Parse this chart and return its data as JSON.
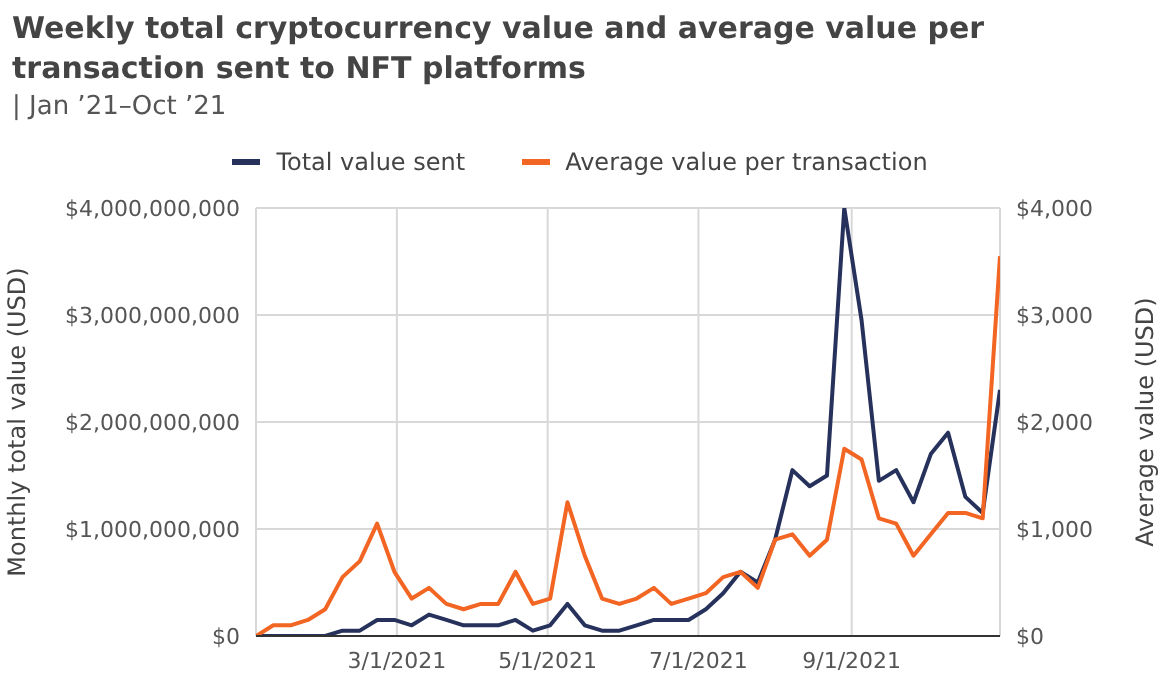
{
  "chart_data": {
    "type": "line",
    "title": "Weekly total cryptocurrency value and average value per transaction sent to NFT platforms",
    "subtitle": "| Jan ’21–Oct ’21",
    "ylabel": "Monthly total value (USD)",
    "y2label": "Average value (USD)",
    "x": [
      "2021-01-03",
      "2021-01-10",
      "2021-01-17",
      "2021-01-24",
      "2021-01-31",
      "2021-02-07",
      "2021-02-14",
      "2021-02-21",
      "2021-02-28",
      "2021-03-07",
      "2021-03-14",
      "2021-03-21",
      "2021-03-28",
      "2021-04-04",
      "2021-04-11",
      "2021-04-18",
      "2021-04-25",
      "2021-05-02",
      "2021-05-09",
      "2021-05-16",
      "2021-05-23",
      "2021-05-30",
      "2021-06-06",
      "2021-06-13",
      "2021-06-20",
      "2021-06-27",
      "2021-07-04",
      "2021-07-11",
      "2021-07-18",
      "2021-07-25",
      "2021-08-01",
      "2021-08-08",
      "2021-08-15",
      "2021-08-22",
      "2021-08-29",
      "2021-09-05",
      "2021-09-12",
      "2021-09-19",
      "2021-09-26",
      "2021-10-03",
      "2021-10-10",
      "2021-10-17",
      "2021-10-24",
      "2021-10-31"
    ],
    "series": [
      {
        "name": "Total value sent",
        "color": "#26325c",
        "values": [
          0,
          0,
          0,
          0,
          0,
          50000000,
          50000000,
          150000000,
          150000000,
          100000000,
          200000000,
          150000000,
          100000000,
          100000000,
          100000000,
          150000000,
          50000000,
          100000000,
          300000000,
          100000000,
          50000000,
          50000000,
          100000000,
          150000000,
          150000000,
          150000000,
          250000000,
          400000000,
          600000000,
          500000000,
          900000000,
          1550000000,
          1400000000,
          1500000000,
          4000000000,
          2950000000,
          1450000000,
          1550000000,
          1250000000,
          1700000000,
          1900000000,
          1300000000,
          1150000000,
          2300000000
        ]
      },
      {
        "name": "Average value per transaction",
        "color": "#f26522",
        "axis": "y2",
        "values": [
          0,
          100,
          100,
          150,
          250,
          550,
          700,
          1050,
          600,
          350,
          450,
          300,
          250,
          300,
          300,
          600,
          300,
          350,
          1250,
          750,
          350,
          300,
          350,
          450,
          300,
          350,
          400,
          550,
          600,
          450,
          900,
          950,
          750,
          900,
          1750,
          1650,
          1100,
          1050,
          750,
          950,
          1150,
          1150,
          1100,
          3550
        ]
      }
    ],
    "xlim": [
      "2021-01-03",
      "2021-10-31"
    ],
    "xticks": [
      {
        "value": "2021-03-01",
        "label": "3/1/2021"
      },
      {
        "value": "2021-05-01",
        "label": "5/1/2021"
      },
      {
        "value": "2021-07-01",
        "label": "7/1/2021"
      },
      {
        "value": "2021-09-01",
        "label": "9/1/2021"
      }
    ],
    "ylim": [
      0,
      4000000000
    ],
    "yticks": [
      {
        "value": 0,
        "label": "$0"
      },
      {
        "value": 1000000000,
        "label": "$1,000,000,000"
      },
      {
        "value": 2000000000,
        "label": "$2,000,000,000"
      },
      {
        "value": 3000000000,
        "label": "$3,000,000,000"
      },
      {
        "value": 4000000000,
        "label": "$4,000,000,000"
      }
    ],
    "y2lim": [
      0,
      4000
    ],
    "y2ticks": [
      {
        "value": 0,
        "label": "$0"
      },
      {
        "value": 1000,
        "label": "$1,000"
      },
      {
        "value": 2000,
        "label": "$2,000"
      },
      {
        "value": 3000,
        "label": "$3,000"
      },
      {
        "value": 4000,
        "label": "$4,000"
      }
    ],
    "grid": true,
    "legend": "top",
    "marker": "none",
    "line_style": "solid"
  }
}
